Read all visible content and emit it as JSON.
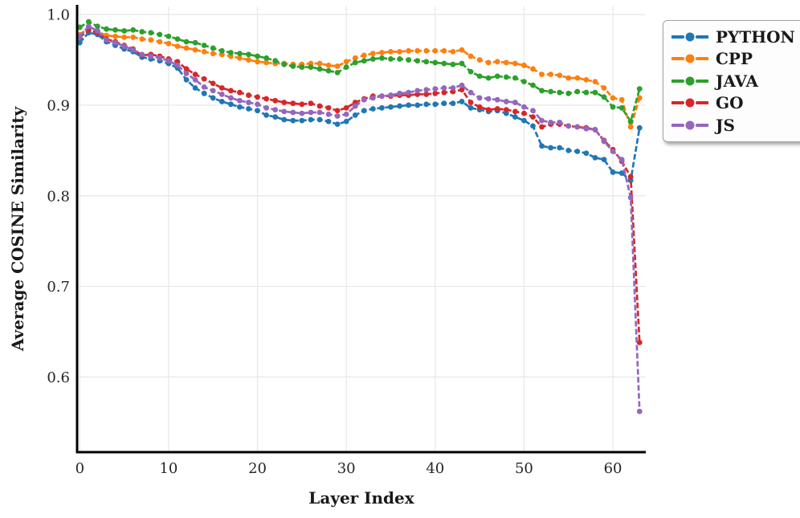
{
  "chart_data": {
    "type": "line",
    "title": "",
    "xlabel": "Layer Index",
    "ylabel": "Average COSINE Similarity",
    "marker": "circle",
    "linestyle": "dashed",
    "grid": true,
    "legend_position": "upper-right-outside",
    "xlim": [
      -0.3,
      63.7
    ],
    "ylim": [
      0.517,
      1.009
    ],
    "xticks": [
      0,
      10,
      20,
      30,
      40,
      50,
      60
    ],
    "xtick_labels": [
      "0",
      "10",
      "20",
      "30",
      "40",
      "50",
      "60"
    ],
    "yticks": [
      1.0,
      0.9,
      0.8,
      0.7,
      0.6
    ],
    "ytick_labels": [
      "1.0",
      "0.9",
      "0.8",
      "0.7",
      "0.6"
    ],
    "gridline_color": "#e7e7e7",
    "spine_color": "#000000",
    "x": [
      0,
      1,
      2,
      3,
      4,
      5,
      6,
      7,
      8,
      9,
      10,
      11,
      12,
      13,
      14,
      15,
      16,
      17,
      18,
      19,
      20,
      21,
      22,
      23,
      24,
      25,
      26,
      27,
      28,
      29,
      30,
      31,
      32,
      33,
      34,
      35,
      36,
      37,
      38,
      39,
      40,
      41,
      42,
      43,
      44,
      45,
      46,
      47,
      48,
      49,
      50,
      51,
      52,
      53,
      54,
      55,
      56,
      57,
      58,
      59,
      60,
      61,
      62,
      63
    ],
    "series": [
      {
        "name": "PYTHON",
        "color": "#1f77b4",
        "values": [
          0.969,
          0.98,
          0.978,
          0.97,
          0.966,
          0.962,
          0.959,
          0.953,
          0.951,
          0.949,
          0.946,
          0.941,
          0.928,
          0.919,
          0.913,
          0.908,
          0.904,
          0.901,
          0.898,
          0.896,
          0.894,
          0.889,
          0.887,
          0.884,
          0.883,
          0.883,
          0.884,
          0.884,
          0.882,
          0.879,
          0.882,
          0.889,
          0.894,
          0.896,
          0.897,
          0.898,
          0.899,
          0.9,
          0.9,
          0.901,
          0.901,
          0.902,
          0.902,
          0.904,
          0.897,
          0.895,
          0.893,
          0.894,
          0.891,
          0.887,
          0.883,
          0.877,
          0.855,
          0.853,
          0.853,
          0.85,
          0.849,
          0.847,
          0.842,
          0.84,
          0.826,
          0.825,
          0.817,
          0.875
        ]
      },
      {
        "name": "CPP",
        "color": "#ff7f0e",
        "values": [
          0.978,
          0.985,
          0.981,
          0.977,
          0.976,
          0.975,
          0.975,
          0.973,
          0.972,
          0.97,
          0.968,
          0.965,
          0.963,
          0.961,
          0.959,
          0.957,
          0.956,
          0.954,
          0.952,
          0.95,
          0.948,
          0.947,
          0.946,
          0.946,
          0.945,
          0.945,
          0.946,
          0.946,
          0.944,
          0.943,
          0.948,
          0.952,
          0.955,
          0.957,
          0.958,
          0.959,
          0.959,
          0.96,
          0.96,
          0.96,
          0.96,
          0.96,
          0.959,
          0.961,
          0.954,
          0.95,
          0.947,
          0.948,
          0.947,
          0.946,
          0.944,
          0.94,
          0.934,
          0.934,
          0.933,
          0.93,
          0.93,
          0.928,
          0.926,
          0.919,
          0.908,
          0.906,
          0.876,
          0.908
        ]
      },
      {
        "name": "JAVA",
        "color": "#2ca02c",
        "values": [
          0.986,
          0.992,
          0.987,
          0.984,
          0.983,
          0.982,
          0.983,
          0.981,
          0.98,
          0.978,
          0.976,
          0.973,
          0.97,
          0.969,
          0.966,
          0.963,
          0.96,
          0.958,
          0.957,
          0.956,
          0.954,
          0.952,
          0.949,
          0.945,
          0.943,
          0.942,
          0.942,
          0.94,
          0.938,
          0.936,
          0.942,
          0.947,
          0.949,
          0.951,
          0.952,
          0.951,
          0.951,
          0.95,
          0.949,
          0.948,
          0.947,
          0.946,
          0.945,
          0.946,
          0.937,
          0.932,
          0.93,
          0.932,
          0.931,
          0.93,
          0.926,
          0.922,
          0.916,
          0.915,
          0.914,
          0.913,
          0.915,
          0.914,
          0.914,
          0.909,
          0.898,
          0.897,
          0.882,
          0.918
        ]
      },
      {
        "name": "GO",
        "color": "#d62728",
        "values": [
          0.975,
          0.983,
          0.98,
          0.973,
          0.97,
          0.966,
          0.962,
          0.955,
          0.956,
          0.954,
          0.951,
          0.948,
          0.94,
          0.934,
          0.929,
          0.924,
          0.919,
          0.916,
          0.914,
          0.911,
          0.909,
          0.907,
          0.905,
          0.903,
          0.902,
          0.901,
          0.902,
          0.899,
          0.897,
          0.894,
          0.897,
          0.903,
          0.907,
          0.91,
          0.91,
          0.91,
          0.911,
          0.911,
          0.912,
          0.912,
          0.913,
          0.914,
          0.915,
          0.917,
          0.903,
          0.898,
          0.895,
          0.896,
          0.895,
          0.893,
          0.891,
          0.887,
          0.876,
          0.879,
          0.879,
          0.877,
          0.876,
          0.875,
          0.873,
          0.861,
          0.851,
          0.838,
          0.821,
          0.638
        ]
      },
      {
        "name": "JS",
        "color": "#9467bd",
        "values": [
          0.976,
          0.987,
          0.982,
          0.972,
          0.969,
          0.965,
          0.961,
          0.956,
          0.954,
          0.952,
          0.949,
          0.944,
          0.935,
          0.928,
          0.92,
          0.916,
          0.912,
          0.908,
          0.905,
          0.903,
          0.901,
          0.897,
          0.895,
          0.893,
          0.892,
          0.891,
          0.892,
          0.892,
          0.89,
          0.888,
          0.89,
          0.899,
          0.906,
          0.908,
          0.91,
          0.911,
          0.913,
          0.914,
          0.916,
          0.917,
          0.918,
          0.919,
          0.919,
          0.922,
          0.914,
          0.908,
          0.907,
          0.906,
          0.904,
          0.903,
          0.898,
          0.894,
          0.883,
          0.881,
          0.881,
          0.877,
          0.876,
          0.874,
          0.873,
          0.86,
          0.849,
          0.84,
          0.798,
          0.562
        ]
      }
    ]
  }
}
